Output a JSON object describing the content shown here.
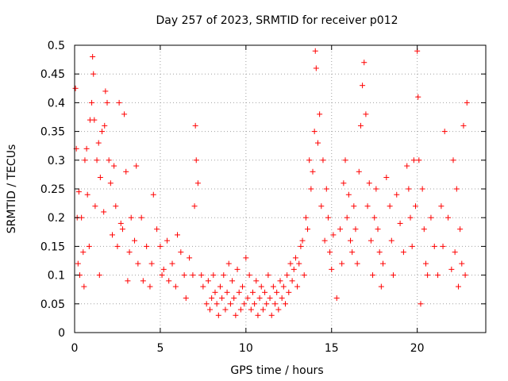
{
  "chart_data": {
    "type": "scatter",
    "title": "Day 257 of 2023, SRMTID for receiver p012",
    "xlabel": "GPS time / hours",
    "ylabel": "SRMTID / TECUs",
    "xlim": [
      0,
      24
    ],
    "ylim": [
      0,
      0.5
    ],
    "xticks": [
      0,
      5,
      10,
      15,
      20
    ],
    "xtick_labels": [
      "0",
      "5",
      "10",
      "15",
      "20"
    ],
    "yticks": [
      0,
      0.05,
      0.1,
      0.15,
      0.2,
      0.25,
      0.3,
      0.35,
      0.4,
      0.45,
      0.5
    ],
    "ytick_labels": [
      "0",
      "0.05",
      "0.1",
      "0.15",
      "0.2",
      "0.25",
      "0.3",
      "0.35",
      "0.4",
      "0.45",
      "0.5"
    ],
    "grid": true,
    "marker": "plus",
    "color": "#ff0000",
    "series": [
      {
        "name": "SRMTID",
        "x": [
          0.05,
          0.1,
          0.15,
          0.2,
          0.25,
          0.3,
          0.4,
          0.5,
          0.55,
          0.6,
          0.7,
          0.75,
          0.85,
          0.9,
          1.0,
          1.05,
          1.1,
          1.15,
          1.2,
          1.3,
          1.4,
          1.45,
          1.5,
          1.6,
          1.7,
          1.75,
          1.8,
          1.9,
          2.0,
          2.1,
          2.2,
          2.3,
          2.4,
          2.5,
          2.6,
          2.7,
          2.8,
          2.9,
          3.0,
          3.1,
          3.2,
          3.3,
          3.5,
          3.6,
          3.7,
          3.9,
          4.0,
          4.2,
          4.4,
          4.5,
          4.6,
          4.8,
          5.0,
          5.1,
          5.2,
          5.4,
          5.5,
          5.7,
          5.9,
          6.0,
          6.2,
          6.4,
          6.5,
          6.7,
          6.9,
          7.0,
          7.05,
          7.1,
          7.2,
          7.4,
          7.5,
          7.7,
          7.8,
          7.9,
          8.0,
          8.1,
          8.2,
          8.3,
          8.4,
          8.5,
          8.6,
          8.7,
          8.8,
          8.9,
          9.0,
          9.1,
          9.2,
          9.3,
          9.4,
          9.5,
          9.6,
          9.7,
          9.8,
          9.9,
          10.0,
          10.1,
          10.2,
          10.3,
          10.4,
          10.5,
          10.6,
          10.7,
          10.8,
          10.9,
          11.0,
          11.1,
          11.2,
          11.3,
          11.4,
          11.5,
          11.6,
          11.7,
          11.8,
          11.9,
          12.0,
          12.1,
          12.2,
          12.3,
          12.4,
          12.5,
          12.6,
          12.7,
          12.8,
          12.9,
          13.0,
          13.1,
          13.2,
          13.3,
          13.4,
          13.5,
          13.6,
          13.7,
          13.8,
          13.9,
          14.0,
          14.05,
          14.1,
          14.2,
          14.3,
          14.4,
          14.5,
          14.6,
          14.7,
          14.8,
          14.9,
          15.0,
          15.1,
          15.3,
          15.5,
          15.6,
          15.7,
          15.8,
          15.9,
          16.0,
          16.1,
          16.2,
          16.3,
          16.4,
          16.5,
          16.6,
          16.7,
          16.8,
          16.9,
          17.0,
          17.1,
          17.2,
          17.3,
          17.4,
          17.5,
          17.6,
          17.7,
          17.8,
          17.9,
          18.0,
          18.2,
          18.4,
          18.5,
          18.6,
          18.8,
          19.0,
          19.2,
          19.4,
          19.5,
          19.6,
          19.7,
          19.8,
          19.9,
          20.0,
          20.05,
          20.1,
          20.2,
          20.3,
          20.4,
          20.5,
          20.6,
          20.8,
          21.0,
          21.2,
          21.4,
          21.5,
          21.6,
          21.8,
          22.0,
          22.1,
          22.2,
          22.3,
          22.4,
          22.5,
          22.6,
          22.7,
          22.8,
          22.9
        ],
        "y": [
          0.425,
          0.32,
          0.2,
          0.12,
          0.245,
          0.1,
          0.2,
          0.14,
          0.08,
          0.3,
          0.32,
          0.24,
          0.15,
          0.37,
          0.4,
          0.48,
          0.45,
          0.37,
          0.22,
          0.3,
          0.33,
          0.1,
          0.27,
          0.35,
          0.21,
          0.36,
          0.42,
          0.4,
          0.3,
          0.26,
          0.17,
          0.29,
          0.22,
          0.15,
          0.4,
          0.19,
          0.18,
          0.38,
          0.28,
          0.09,
          0.14,
          0.2,
          0.16,
          0.29,
          0.12,
          0.2,
          0.09,
          0.15,
          0.08,
          0.12,
          0.24,
          0.18,
          0.15,
          0.1,
          0.11,
          0.16,
          0.09,
          0.12,
          0.08,
          0.17,
          0.14,
          0.1,
          0.06,
          0.13,
          0.1,
          0.22,
          0.36,
          0.3,
          0.26,
          0.1,
          0.08,
          0.05,
          0.09,
          0.04,
          0.06,
          0.1,
          0.07,
          0.05,
          0.03,
          0.08,
          0.06,
          0.1,
          0.04,
          0.07,
          0.12,
          0.05,
          0.09,
          0.06,
          0.03,
          0.11,
          0.07,
          0.04,
          0.08,
          0.05,
          0.13,
          0.06,
          0.1,
          0.04,
          0.07,
          0.05,
          0.09,
          0.03,
          0.06,
          0.08,
          0.04,
          0.07,
          0.05,
          0.1,
          0.06,
          0.03,
          0.08,
          0.05,
          0.07,
          0.04,
          0.09,
          0.06,
          0.08,
          0.05,
          0.1,
          0.07,
          0.12,
          0.09,
          0.11,
          0.13,
          0.08,
          0.12,
          0.15,
          0.16,
          0.1,
          0.2,
          0.18,
          0.3,
          0.25,
          0.28,
          0.35,
          0.49,
          0.46,
          0.33,
          0.38,
          0.22,
          0.3,
          0.16,
          0.25,
          0.2,
          0.14,
          0.11,
          0.17,
          0.06,
          0.18,
          0.12,
          0.26,
          0.3,
          0.2,
          0.24,
          0.16,
          0.14,
          0.22,
          0.18,
          0.12,
          0.28,
          0.36,
          0.43,
          0.47,
          0.38,
          0.22,
          0.26,
          0.16,
          0.1,
          0.2,
          0.25,
          0.18,
          0.14,
          0.08,
          0.12,
          0.27,
          0.22,
          0.16,
          0.1,
          0.24,
          0.19,
          0.14,
          0.29,
          0.25,
          0.2,
          0.15,
          0.3,
          0.22,
          0.49,
          0.41,
          0.3,
          0.05,
          0.25,
          0.18,
          0.12,
          0.1,
          0.2,
          0.15,
          0.1,
          0.22,
          0.15,
          0.35,
          0.2,
          0.11,
          0.3,
          0.14,
          0.25,
          0.08,
          0.18,
          0.12,
          0.36,
          0.1,
          0.4
        ]
      }
    ]
  }
}
